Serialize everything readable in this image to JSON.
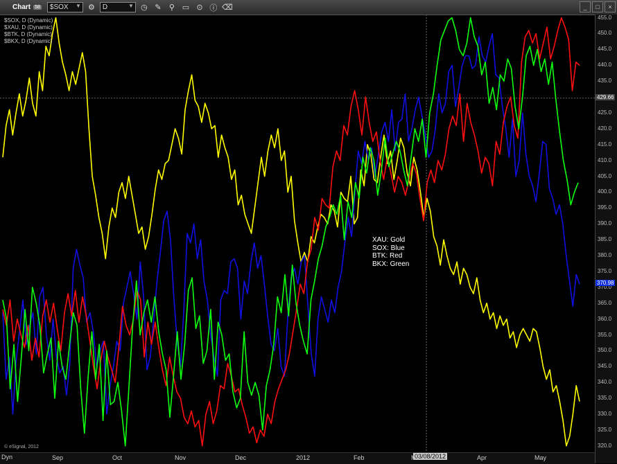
{
  "toolbar": {
    "title": "Chart",
    "badge": "58",
    "symbol": "$SOX",
    "interval": "D"
  },
  "legend": [
    "$SOX, D (Dynamic)",
    "$XAU, D (Dynamic)",
    "$BTK, D (Dynamic)",
    "$BKX, D (Dynamic)"
  ],
  "note": [
    "XAU:  Gold",
    "SOX:  Blue",
    "BTK:  Red",
    "BKX:  Green"
  ],
  "footer": {
    "dyn": "Dyn",
    "copyright": "© eSignal, 2012",
    "cursor_date": "03/08/2012"
  },
  "colors": {
    "gold": "#ffff00",
    "blue": "#1010e0",
    "red": "#ff1010",
    "green": "#10ff10"
  },
  "chart_data": {
    "type": "line",
    "x_labels": [
      "Sep",
      "Oct",
      "Nov",
      "Dec",
      "2012",
      "Feb",
      "M",
      "Apr",
      "May"
    ],
    "y_ticks": [
      320,
      325,
      330,
      335,
      340,
      345,
      350,
      355,
      360,
      365,
      370,
      375,
      380,
      385,
      390,
      395,
      400,
      405,
      410,
      415,
      420,
      425,
      430,
      435,
      440,
      445,
      450,
      455
    ],
    "ylim": [
      318,
      456
    ],
    "price_tags": [
      {
        "value": 429.66,
        "label": "429.66",
        "color": "#444",
        "text": "#fff"
      },
      {
        "value": 370.98,
        "label": "370.98",
        "color": "#1030e0",
        "text": "#fff"
      }
    ],
    "series": [
      {
        "name": "XAU",
        "color": "#ffff00",
        "values": [
          411,
          421,
          426,
          418,
          425,
          431,
          424,
          429,
          436,
          428,
          424,
          438,
          432,
          446,
          443,
          450,
          455,
          447,
          441,
          437,
          432,
          438,
          434,
          439,
          444,
          438,
          420,
          405,
          399,
          392,
          387,
          379,
          389,
          395,
          392,
          400,
          403,
          398,
          405,
          399,
          393,
          387,
          389,
          382,
          386,
          393,
          401,
          407,
          404,
          409,
          410,
          415,
          420,
          417,
          412,
          426,
          432,
          437,
          429,
          427,
          422,
          428,
          425,
          420,
          421,
          411,
          418,
          414,
          411,
          404,
          407,
          396,
          399,
          393,
          390,
          387,
          395,
          403,
          411,
          405,
          413,
          418,
          414,
          420,
          410,
          413,
          400,
          405,
          391,
          384,
          378,
          381,
          378,
          386,
          384,
          389,
          393,
          392,
          390,
          396,
          394,
          389,
          400,
          398,
          397,
          405,
          390,
          392,
          407,
          402,
          415,
          412,
          404,
          403,
          411,
          418,
          409,
          413,
          404,
          410,
          417,
          414,
          406,
          402,
          411,
          407,
          400,
          392,
          398,
          394,
          386,
          383,
          377,
          385,
          380,
          376,
          374,
          378,
          371,
          376,
          374,
          370,
          368,
          373,
          366,
          362,
          365,
          360,
          362,
          357,
          361,
          358,
          360,
          354,
          356,
          351,
          355,
          357,
          355,
          353,
          357,
          356,
          351,
          345,
          341,
          344,
          337,
          339,
          334,
          328,
          320,
          323,
          330,
          339,
          334
        ]
      },
      {
        "name": "SOX",
        "color": "#1010e0",
        "values": [
          362,
          341,
          348,
          330,
          347,
          356,
          366,
          352,
          358,
          362,
          349,
          367,
          370,
          355,
          347,
          360,
          348,
          343,
          345,
          336,
          346,
          376,
          382,
          377,
          373,
          359,
          362,
          356,
          345,
          350,
          353,
          330,
          339,
          345,
          353,
          350,
          365,
          370,
          375,
          368,
          360,
          378,
          367,
          344,
          348,
          360,
          372,
          381,
          391,
          394,
          385,
          367,
          353,
          345,
          363,
          387,
          384,
          390,
          379,
          385,
          372,
          366,
          355,
          348,
          342,
          366,
          369,
          368,
          378,
          379,
          376,
          360,
          372,
          368,
          378,
          384,
          376,
          380,
          371,
          361,
          352,
          350,
          357,
          345,
          342,
          361,
          373,
          376,
          371,
          378,
          380,
          364,
          349,
          342,
          360,
          367,
          363,
          359,
          366,
          362,
          370,
          375,
          384,
          392,
          386,
          400,
          413,
          409,
          416,
          410,
          414,
          405,
          412,
          419,
          422,
          416,
          426,
          413,
          422,
          423,
          431,
          416,
          420,
          426,
          430,
          424,
          418,
          411,
          413,
          420,
          431,
          425,
          428,
          438,
          440,
          427,
          433,
          440,
          443,
          443,
          439,
          440,
          449,
          443,
          441,
          446,
          450,
          437,
          436,
          427,
          420,
          411,
          423,
          405,
          410,
          425,
          412,
          405,
          402,
          397,
          406,
          416,
          415,
          401,
          398,
          393,
          396,
          390,
          380,
          372,
          364,
          374,
          371
        ]
      },
      {
        "name": "BTK",
        "color": "#ff1010",
        "values": [
          363,
          358,
          366,
          353,
          360,
          355,
          351,
          358,
          347,
          354,
          348,
          361,
          366,
          359,
          365,
          357,
          350,
          362,
          368,
          361,
          369,
          359,
          367,
          361,
          353,
          345,
          338,
          347,
          353,
          348,
          344,
          340,
          351,
          364,
          358,
          355,
          360,
          369,
          366,
          348,
          359,
          352,
          359,
          351,
          344,
          339,
          348,
          342,
          337,
          335,
          329,
          327,
          331,
          326,
          328,
          320,
          330,
          334,
          327,
          331,
          339,
          338,
          346,
          342,
          337,
          338,
          333,
          329,
          324,
          326,
          321,
          325,
          323,
          330,
          327,
          334,
          338,
          341,
          344,
          349,
          356,
          363,
          371,
          368,
          378,
          382,
          392,
          388,
          398,
          396,
          395,
          408,
          413,
          410,
          421,
          418,
          427,
          432,
          426,
          418,
          430,
          422,
          416,
          419,
          410,
          404,
          411,
          406,
          400,
          405,
          403,
          399,
          404,
          409,
          406,
          398,
          391,
          403,
          407,
          403,
          410,
          407,
          412,
          420,
          424,
          421,
          431,
          416,
          428,
          422,
          418,
          413,
          406,
          411,
          409,
          402,
          416,
          412,
          422,
          427,
          430,
          421,
          417,
          441,
          449,
          451,
          447,
          450,
          442,
          447,
          452,
          442,
          446,
          451,
          455,
          452,
          448,
          432,
          441,
          440
        ]
      },
      {
        "name": "BKX",
        "color": "#10ff10",
        "values": [
          366,
          360,
          338,
          352,
          334,
          348,
          363,
          350,
          370,
          365,
          358,
          343,
          349,
          354,
          335,
          353,
          345,
          341,
          352,
          362,
          358,
          338,
          324,
          342,
          356,
          341,
          352,
          328,
          350,
          333,
          334,
          340,
          331,
          320,
          339,
          358,
          372,
          355,
          362,
          366,
          359,
          367,
          356,
          349,
          344,
          329,
          342,
          356,
          341,
          352,
          369,
          373,
          357,
          361,
          346,
          350,
          363,
          341,
          359,
          355,
          347,
          349,
          337,
          332,
          335,
          356,
          340,
          336,
          340,
          336,
          325,
          339,
          344,
          352,
          367,
          362,
          374,
          361,
          377,
          365,
          358,
          353,
          349,
          366,
          372,
          379,
          383,
          389,
          392,
          396,
          393,
          399,
          385,
          397,
          392,
          403,
          398,
          411,
          406,
          414,
          410,
          399,
          407,
          417,
          408,
          412,
          416,
          413,
          407,
          402,
          411,
          420,
          416,
          423,
          411,
          425,
          431,
          440,
          448,
          451,
          454,
          455,
          451,
          445,
          443,
          447,
          455,
          449,
          446,
          437,
          441,
          428,
          433,
          426,
          437,
          435,
          442,
          439,
          427,
          420,
          430,
          443,
          446,
          440,
          445,
          438,
          442,
          434,
          441,
          429,
          419,
          410,
          404,
          396,
          400,
          403
        ]
      }
    ]
  }
}
